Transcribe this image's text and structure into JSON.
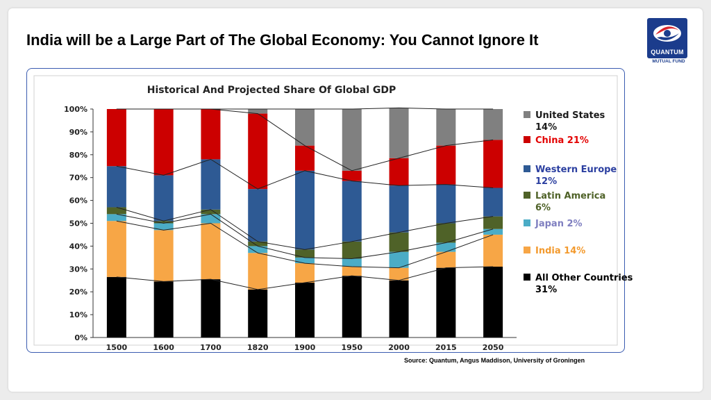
{
  "slide": {
    "title": "India will be a Large Part of The Global Economy: You Cannot Ignore It",
    "source": "Source: Quantum, Angus Maddison, University of Groningen",
    "logo": {
      "name": "QUANTUM",
      "subtitle": "MUTUAL FUND",
      "icon": "quantum-logo-icon"
    }
  },
  "chart_data": {
    "type": "bar",
    "stacked": true,
    "title": "Historical And Projected Share Of Global GDP",
    "categories": [
      "1500",
      "1600",
      "1700",
      "1820",
      "1900",
      "1950",
      "2000",
      "2015",
      "2050"
    ],
    "ylim": [
      0,
      100
    ],
    "yticks": [
      "0%",
      "10%",
      "20%",
      "30%",
      "40%",
      "50%",
      "60%",
      "70%",
      "80%",
      "90%",
      "100%"
    ],
    "grid": false,
    "legend_position": "right",
    "series": [
      {
        "name": "All Other Countries 31%",
        "color": "#000000",
        "label_color": "#000000",
        "values": [
          26.5,
          24.5,
          25.5,
          21,
          24,
          27,
          25,
          30.5,
          31
        ]
      },
      {
        "name": "India 14%",
        "color": "#f7a646",
        "label_color": "#f39a2e",
        "values": [
          24.5,
          22.5,
          24.5,
          16,
          8.5,
          4,
          5.5,
          7,
          14
        ]
      },
      {
        "name": "Japan 2%",
        "color": "#4bacc6",
        "label_color": "#7f7fc0",
        "values": [
          3,
          3,
          4,
          3,
          2.5,
          3.5,
          7,
          4,
          2.5
        ]
      },
      {
        "name": "Latin America 6%",
        "color": "#4f6228",
        "label_color": "#4f6228",
        "values": [
          3,
          1,
          2,
          2,
          3.5,
          7.5,
          8.5,
          8.5,
          5.5
        ]
      },
      {
        "name": "Western Europe 12%",
        "color": "#2e5a94",
        "label_color": "#2b3fa0",
        "values": [
          18,
          20,
          22,
          23,
          34.5,
          26.5,
          20.5,
          17,
          12.5
        ]
      },
      {
        "name": "China 21%",
        "color": "#cc0000",
        "label_color": "#e30000",
        "values": [
          25,
          29,
          22,
          33,
          11,
          4.5,
          12,
          17,
          21
        ]
      },
      {
        "name": "United States 14%",
        "color": "#808080",
        "label_color": "#1a1a1a",
        "values": [
          0,
          0,
          0,
          2,
          16,
          27,
          22,
          16,
          13.5
        ]
      }
    ]
  }
}
